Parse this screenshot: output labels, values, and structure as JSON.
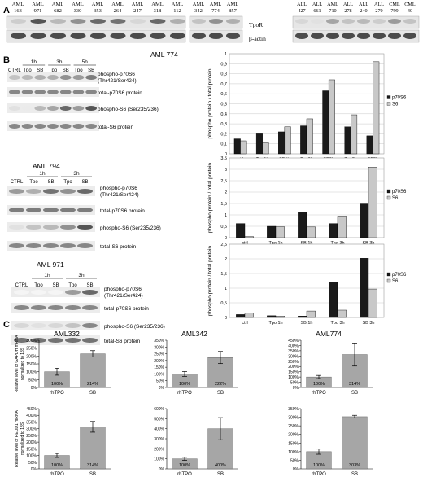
{
  "panel_labels": {
    "a": "A",
    "b": "B",
    "c": "C"
  },
  "panel_a": {
    "blot1_lanes": [
      "AML\n163",
      "AML\n971",
      "AML\n682",
      "AML\n330",
      "AML\n353",
      "AML\n264",
      "AML\n247",
      "AML\n318",
      "AML\n112"
    ],
    "blot2_lanes": [
      "AML\n342",
      "AML\n774",
      "AML\n857"
    ],
    "blot3_lanes": [
      "ALL\n427",
      "ALL\n661",
      "AML\n710",
      "ALL\n278",
      "ALL\n240",
      "ALL\n270",
      "CML\n799",
      "CML\n40"
    ],
    "band_labels": [
      "TpoR",
      "β-actin"
    ]
  },
  "panel_b": {
    "blots": [
      {
        "title": "AML 774",
        "time_labels": [
          "1h",
          "3h",
          "5h"
        ],
        "lanes": [
          "CTRL",
          "Tpo",
          "SB",
          "Tpo",
          "SB",
          "Tpo",
          "SB"
        ],
        "band_labels": [
          "phospho-p70S6\n(Thr421/Ser424)",
          "total-p70S6 protein",
          "phospho-S6 (Ser235/236)",
          "total-S6 protein"
        ]
      },
      {
        "title": "AML 794",
        "time_labels": [
          "1h",
          "3h"
        ],
        "lanes": [
          "CTRL",
          "Tpo",
          "SB",
          "Tpo",
          "SB"
        ],
        "band_labels": [
          "phospho-p70S6\n(Thr421/Ser424)",
          "total-p70S6 protein",
          "phospho-S6 (Ser235/236)",
          "total-S6 protein"
        ]
      },
      {
        "title": "AML 971",
        "time_labels": [
          "1h",
          "3h"
        ],
        "lanes": [
          "CTRL",
          "Tpo",
          "SB",
          "Tpo",
          "SB"
        ],
        "band_labels": [
          "phospho-p70S6\n(Thr421/Ser424)",
          "total-p70S6 protein",
          "phospho-S6 (Ser235/236)",
          "total-S6 protein"
        ]
      }
    ]
  },
  "chart_data": [
    {
      "type": "bar",
      "ylabel": "phospho protein / total protein",
      "categories": [
        "ctrl",
        "Tpo1h",
        "SB1h",
        "Tpo3h",
        "SB3h",
        "Tpo5h",
        "SB5h"
      ],
      "ylim": [
        0,
        1
      ],
      "yticks": [
        "0",
        "0,1",
        "0,2",
        "0,3",
        "0,4",
        "0,5",
        "0,6",
        "0,7",
        "0,8",
        "0,9",
        "1"
      ],
      "series": [
        {
          "name": "p70S6",
          "color": "#1a1a1a",
          "values": [
            0.15,
            0.2,
            0.22,
            0.28,
            0.63,
            0.27,
            0.18
          ]
        },
        {
          "name": "S6",
          "color": "#c8c8c8",
          "values": [
            0.13,
            0.11,
            0.27,
            0.35,
            0.74,
            0.39,
            0.92
          ]
        }
      ],
      "legend": "right"
    },
    {
      "type": "bar",
      "ylabel": "phospho protein / total protein",
      "categories": [
        "ctrl",
        "Tpo 1h",
        "SB 1h",
        "Tpo 3h",
        "SB 3h"
      ],
      "ylim": [
        0,
        3.5
      ],
      "yticks": [
        "0",
        "0,5",
        "1",
        "1,5",
        "2",
        "2,5",
        "3",
        "3,5"
      ],
      "series": [
        {
          "name": "p70S6",
          "color": "#1a1a1a",
          "values": [
            0.62,
            0.5,
            1.12,
            0.62,
            1.48
          ]
        },
        {
          "name": "S6",
          "color": "#c8c8c8",
          "values": [
            0.05,
            0.48,
            0.47,
            0.95,
            3.1
          ]
        }
      ],
      "legend": "right"
    },
    {
      "type": "bar",
      "ylabel": "phospho protein / total protein",
      "categories": [
        "ctrl",
        "Tpo 1h",
        "SB 1h",
        "Tpo 3h",
        "SB 3h"
      ],
      "ylim": [
        0,
        2.5
      ],
      "yticks": [
        "0",
        "0,5",
        "1",
        "1,5",
        "2",
        "2,5"
      ],
      "series": [
        {
          "name": "p70S6",
          "color": "#1a1a1a",
          "values": [
            0.1,
            0.06,
            0.05,
            1.2,
            2.02
          ]
        },
        {
          "name": "S6",
          "color": "#c8c8c8",
          "values": [
            0.15,
            0.05,
            0.22,
            0.25,
            0.97
          ]
        }
      ],
      "legend": "right"
    },
    {
      "type": "bar",
      "title": "AML332",
      "ylabel": "Relative level of GAPDH mRNA\nnormalized to 18S",
      "categories": [
        "rhTPO",
        "SB"
      ],
      "ylim": [
        0,
        300
      ],
      "yticks": [
        "0%",
        "50%",
        "100%",
        "150%",
        "200%",
        "250%",
        "300%"
      ],
      "values": [
        100,
        214
      ],
      "errors": [
        22,
        20
      ],
      "bar_labels": [
        "100%",
        "214%"
      ]
    },
    {
      "type": "bar",
      "title": "AML342",
      "categories": [
        "rhTPO",
        "SB"
      ],
      "ylim": [
        0,
        350
      ],
      "yticks": [
        "0%",
        "50%",
        "100%",
        "150%",
        "200%",
        "250%",
        "300%",
        "350%"
      ],
      "values": [
        100,
        222
      ],
      "errors": [
        18,
        45
      ],
      "bar_labels": [
        "100%",
        "222%"
      ]
    },
    {
      "type": "bar",
      "title": "AML774",
      "categories": [
        "rhTPO",
        "SB"
      ],
      "ylim": [
        0,
        450
      ],
      "yticks": [
        "0%",
        "50%",
        "100%",
        "150%",
        "200%",
        "250%",
        "300%",
        "350%",
        "400%",
        "450%"
      ],
      "values": [
        100,
        314
      ],
      "errors": [
        15,
        110
      ],
      "bar_labels": [
        "100%",
        "314%"
      ]
    },
    {
      "type": "bar",
      "ylabel": "Relative level of REDD1 mRNA\nnormalized to 18S",
      "categories": [
        "rhTPO",
        "SB"
      ],
      "ylim": [
        0,
        450
      ],
      "yticks": [
        "0%",
        "50%",
        "100%",
        "150%",
        "200%",
        "250%",
        "300%",
        "350%",
        "400%",
        "450%"
      ],
      "values": [
        100,
        314
      ],
      "errors": [
        15,
        40
      ],
      "bar_labels": [
        "100%",
        "314%"
      ]
    },
    {
      "type": "bar",
      "categories": [
        "rhTPO",
        "SB"
      ],
      "ylim": [
        0,
        600
      ],
      "yticks": [
        "0%",
        "100%",
        "200%",
        "300%",
        "400%",
        "500%",
        "600%"
      ],
      "values": [
        100,
        400
      ],
      "errors": [
        15,
        110
      ],
      "bar_labels": [
        "100%",
        "400%"
      ]
    },
    {
      "type": "bar",
      "categories": [
        "rhTPO",
        "SB"
      ],
      "ylim": [
        0,
        350
      ],
      "yticks": [
        "0%",
        "50%",
        "100%",
        "150%",
        "200%",
        "250%",
        "300%",
        "350%"
      ],
      "values": [
        100,
        303
      ],
      "errors": [
        15,
        8
      ],
      "bar_labels": [
        "100%",
        "303%"
      ]
    }
  ]
}
